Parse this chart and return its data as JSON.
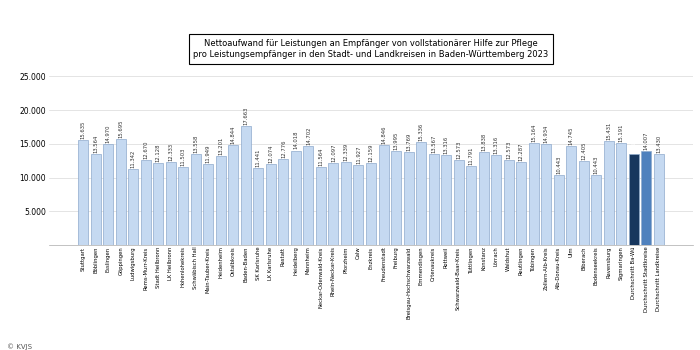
{
  "categories": [
    "Stuttgart",
    "Böblingen",
    "Esslingen",
    "Göppingen",
    "Ludwigsburg",
    "Rems-Murr-Kreis",
    "Stadt Heilbronn",
    "LK Heilbronn",
    "Hohenlohekreis",
    "Schwäbisch Hall",
    "Main-Tauber-Kreis",
    "Heidenheim",
    "Ostalbkreis",
    "Baden-Baden",
    "SK Karlsruhe",
    "LK Karlsruhe",
    "Rastatt",
    "Heidelberg",
    "Mannheim",
    "Neckar-Odenwald-Kreis",
    "Rhein-Neckar-Kreis",
    "Pforzheim",
    "Calw",
    "Enzkreis",
    "Freudenstadt",
    "Freiburg",
    "Breisgau-Hochschwarzwald",
    "Emmendingen",
    "Ortenaukreis",
    "Rottweil",
    "Schwarzwald-Baar-Kreis",
    "Tuttlingen",
    "Konstanz",
    "Lörrach",
    "Waldshut",
    "Reutlingen",
    "Tübingen",
    "Zollern-Alb-Kreis",
    "Alb-Donau-Kreis",
    "Ulm",
    "Biberach",
    "Bodenseekreis",
    "Ravensburg",
    "Sigmaringen",
    "Durchschnitt Ba-Wü",
    "Durchschnitt Stadtkreise",
    "Durchschnitt Landkreise"
  ],
  "values": [
    15635,
    13564,
    14970,
    15695,
    11342,
    12670,
    12128,
    12333,
    11503,
    13558,
    11949,
    13201,
    14844,
    17663,
    11441,
    12074,
    12776,
    14018,
    14702,
    11564,
    12097,
    12339,
    11927,
    12159,
    14846,
    13995,
    13769,
    15336,
    13567,
    13316,
    12573,
    11791,
    13838,
    13316,
    12573,
    12287,
    15164,
    14934,
    10443,
    14745,
    12405,
    10443,
    15431,
    15191,
    13568,
    14007,
    13430
  ],
  "bar_color_light": "#c5d9f1",
  "bar_color_dark": "#17375e",
  "bar_color_medium": "#4f81bd",
  "bar_edge_color": "#8eaacc",
  "title_line1": "Nettoaufwand für Leistungen an Empfänger von vollstationärer Hilfe zur Pflege",
  "title_line2": "pro Leistungsempfänger in den Stadt- und Landkreisen in Baden-Württemberg 2023",
  "ylim": [
    0,
    27000
  ],
  "yticks": [
    0,
    5000,
    10000,
    15000,
    20000,
    25000
  ],
  "copyright": "© KVJS",
  "bg_color": "#ffffff"
}
